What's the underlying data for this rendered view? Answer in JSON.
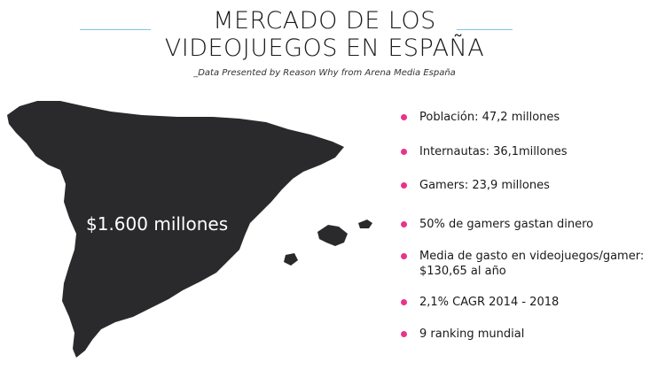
{
  "header": {
    "title_line1": "MERCADO DE LOS",
    "title_line2": "VIDEOJUEGOS EN ESPAÑA",
    "subtitle": "_Data Presented by Reason Why from Arena Media España"
  },
  "map": {
    "label": "$1.600 millones",
    "fill_color": "#2a2a2c"
  },
  "stats": {
    "bullet_color": "#e8338c",
    "items": [
      {
        "text": "Población: 47,2 millones"
      },
      {
        "text": "Internautas: 36,1millones"
      },
      {
        "text": "Gamers: 23,9 millones"
      },
      {
        "text": "50% de gamers gastan dinero"
      },
      {
        "text": "Media de gasto en videojuegos/gamer: $130,65 al año"
      },
      {
        "text": "2,1% CAGR 2014 - 2018"
      },
      {
        "text": "9 ranking mundial"
      }
    ]
  },
  "colors": {
    "accent_line": "#7fc6e8"
  }
}
